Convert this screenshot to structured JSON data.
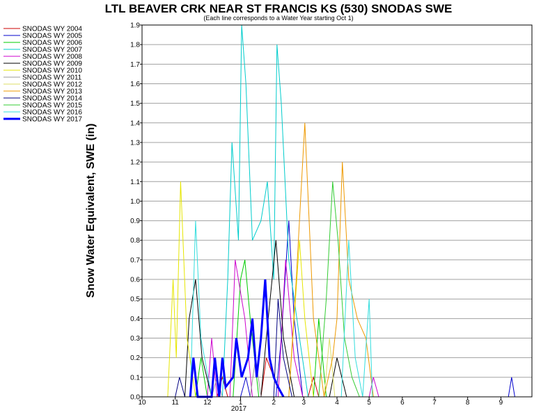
{
  "chart_data": {
    "type": "line",
    "title": "LTL BEAVER CRK NEAR ST FRANCIS KS (530) SNODAS SWE",
    "subtitle": "(Each line corresponds to a Water Year starting Oct 1)",
    "xlabel": "",
    "ylabel": "Snow Water Equivalent, SWE (in)",
    "ylim": [
      0,
      1.9
    ],
    "yticks": [
      "0.0",
      "0.1",
      "0.2",
      "0.3",
      "0.4",
      "0.5",
      "0.6",
      "0.7",
      "0.8",
      "0.9",
      "1.0",
      "1.1",
      "1.2",
      "1.3",
      "1.4",
      "1.5",
      "1.6",
      "1.7",
      "1.8",
      "1.9"
    ],
    "xlim": [
      "2016-10-01",
      "2017-09-30"
    ],
    "xticks": [
      {
        "date": "2016-10-01",
        "label": "10"
      },
      {
        "date": "2016-11-01",
        "label": "11"
      },
      {
        "date": "2016-12-01",
        "label": "12"
      },
      {
        "date": "2017-01-01",
        "label": "1"
      },
      {
        "date": "2017-02-01",
        "label": "2"
      },
      {
        "date": "2017-03-01",
        "label": "3"
      },
      {
        "date": "2017-04-01",
        "label": "4"
      },
      {
        "date": "2017-05-01",
        "label": "5"
      },
      {
        "date": "2017-06-01",
        "label": "6"
      },
      {
        "date": "2017-07-01",
        "label": "7"
      },
      {
        "date": "2017-08-01",
        "label": "8"
      },
      {
        "date": "2017-09-01",
        "label": "9"
      }
    ],
    "year_label": "2017",
    "grid": true,
    "legend_position": "top-left",
    "series": [
      {
        "name": "SNODAS WY 2004",
        "color": "#cc0000",
        "points": [
          [
            "2016-12-10",
            0
          ],
          [
            "2016-12-15",
            0.1
          ],
          [
            "2016-12-20",
            0
          ],
          [
            "2017-01-20",
            0
          ],
          [
            "2017-01-25",
            0.2
          ],
          [
            "2017-02-01",
            0.1
          ],
          [
            "2017-02-10",
            0
          ],
          [
            "2017-03-05",
            0
          ],
          [
            "2017-03-10",
            0.1
          ],
          [
            "2017-03-15",
            0
          ]
        ]
      },
      {
        "name": "SNODAS WY 2005",
        "color": "#0000cc",
        "points": [
          [
            "2017-01-01",
            0
          ],
          [
            "2017-01-06",
            0.1
          ],
          [
            "2017-01-10",
            0
          ],
          [
            "2017-02-03",
            0
          ],
          [
            "2017-02-08",
            0.3
          ],
          [
            "2017-02-15",
            0.9
          ],
          [
            "2017-02-20",
            0.4
          ],
          [
            "2017-02-28",
            0
          ],
          [
            "2017-09-08",
            0
          ],
          [
            "2017-09-11",
            0.1
          ],
          [
            "2017-09-14",
            0
          ]
        ]
      },
      {
        "name": "SNODAS WY 2006",
        "color": "#00cc00",
        "points": [
          [
            "2016-11-20",
            0
          ],
          [
            "2016-11-25",
            0.2
          ],
          [
            "2016-12-01",
            0
          ],
          [
            "2016-12-25",
            0
          ],
          [
            "2017-01-01",
            0.6
          ],
          [
            "2017-01-05",
            0.7
          ],
          [
            "2017-01-10",
            0.4
          ],
          [
            "2017-01-18",
            0
          ],
          [
            "2017-03-10",
            0
          ],
          [
            "2017-03-15",
            0.4
          ],
          [
            "2017-03-22",
            0
          ]
        ]
      },
      {
        "name": "SNODAS WY 2007",
        "color": "#00cccc",
        "points": [
          [
            "2016-12-15",
            0
          ],
          [
            "2016-12-20",
            0.6
          ],
          [
            "2016-12-24",
            1.3
          ],
          [
            "2016-12-30",
            0.8
          ],
          [
            "2017-01-02",
            1.9
          ],
          [
            "2017-01-06",
            1.6
          ],
          [
            "2017-01-12",
            0.8
          ],
          [
            "2017-01-20",
            0.9
          ],
          [
            "2017-01-26",
            1.1
          ],
          [
            "2017-02-01",
            0.6
          ],
          [
            "2017-02-04",
            1.8
          ],
          [
            "2017-02-08",
            1.5
          ],
          [
            "2017-02-15",
            0.7
          ],
          [
            "2017-02-25",
            0.3
          ],
          [
            "2017-03-05",
            0
          ]
        ]
      },
      {
        "name": "SNODAS WY 2008",
        "color": "#cc00cc",
        "points": [
          [
            "2016-12-01",
            0
          ],
          [
            "2016-12-05",
            0.3
          ],
          [
            "2016-12-10",
            0
          ],
          [
            "2016-12-22",
            0
          ],
          [
            "2016-12-27",
            0.7
          ],
          [
            "2017-01-05",
            0.4
          ],
          [
            "2017-01-12",
            0
          ],
          [
            "2017-02-05",
            0
          ],
          [
            "2017-02-12",
            0.7
          ],
          [
            "2017-02-20",
            0.2
          ],
          [
            "2017-02-28",
            0
          ],
          [
            "2017-05-01",
            0
          ],
          [
            "2017-05-05",
            0.1
          ],
          [
            "2017-05-10",
            0
          ]
        ]
      },
      {
        "name": "SNODAS WY 2009",
        "color": "#000000",
        "points": [
          [
            "2016-11-10",
            0
          ],
          [
            "2016-11-14",
            0.4
          ],
          [
            "2016-11-20",
            0.6
          ],
          [
            "2016-11-26",
            0.2
          ],
          [
            "2016-12-05",
            0
          ],
          [
            "2017-01-20",
            0
          ],
          [
            "2017-01-25",
            0.3
          ],
          [
            "2017-02-03",
            0.8
          ],
          [
            "2017-02-10",
            0.3
          ],
          [
            "2017-02-20",
            0
          ],
          [
            "2017-03-25",
            0
          ],
          [
            "2017-04-01",
            0.2
          ],
          [
            "2017-04-10",
            0
          ]
        ]
      },
      {
        "name": "SNODAS WY 2010",
        "color": "#e6e600",
        "points": [
          [
            "2016-10-25",
            0
          ],
          [
            "2016-10-30",
            0.6
          ],
          [
            "2016-11-02",
            0.2
          ],
          [
            "2016-11-06",
            1.1
          ],
          [
            "2016-11-12",
            0.3
          ],
          [
            "2016-11-20",
            0
          ],
          [
            "2017-02-15",
            0
          ],
          [
            "2017-02-25",
            0.8
          ],
          [
            "2017-03-02",
            0.4
          ],
          [
            "2017-03-10",
            0
          ]
        ]
      },
      {
        "name": "SNODAS WY 2011",
        "color": "#999999",
        "points": [
          [
            "2016-12-05",
            0
          ],
          [
            "2016-12-10",
            0.1
          ],
          [
            "2016-12-15",
            0
          ],
          [
            "2017-01-10",
            0
          ],
          [
            "2017-01-15",
            0.2
          ],
          [
            "2017-01-20",
            0
          ]
        ]
      },
      {
        "name": "SNODAS WY 2012",
        "color": "#dddd66",
        "points": [
          [
            "2017-03-20",
            0
          ],
          [
            "2017-03-25",
            0.3
          ],
          [
            "2017-03-30",
            0
          ]
        ]
      },
      {
        "name": "SNODAS WY 2013",
        "color": "#ee9900",
        "points": [
          [
            "2017-02-15",
            0
          ],
          [
            "2017-02-22",
            0.6
          ],
          [
            "2017-03-02",
            1.4
          ],
          [
            "2017-03-10",
            0.4
          ],
          [
            "2017-03-20",
            0
          ],
          [
            "2017-03-28",
            0.2
          ],
          [
            "2017-04-01",
            0.4
          ],
          [
            "2017-04-06",
            1.2
          ],
          [
            "2017-04-12",
            0.6
          ],
          [
            "2017-04-20",
            0.4
          ],
          [
            "2017-04-28",
            0.3
          ],
          [
            "2017-05-05",
            0
          ]
        ]
      },
      {
        "name": "SNODAS WY 2014",
        "color": "#000080",
        "points": [
          [
            "2016-11-01",
            0
          ],
          [
            "2016-11-05",
            0.1
          ],
          [
            "2016-11-10",
            0
          ],
          [
            "2017-02-01",
            0
          ],
          [
            "2017-02-05",
            0.5
          ],
          [
            "2017-02-10",
            0.2
          ],
          [
            "2017-02-18",
            0
          ]
        ]
      },
      {
        "name": "SNODAS WY 2015",
        "color": "#33cc33",
        "points": [
          [
            "2017-03-15",
            0
          ],
          [
            "2017-03-22",
            0.5
          ],
          [
            "2017-03-28",
            1.1
          ],
          [
            "2017-04-02",
            0.8
          ],
          [
            "2017-04-08",
            0.3
          ],
          [
            "2017-04-15",
            0.1
          ],
          [
            "2017-04-22",
            0
          ]
        ]
      },
      {
        "name": "SNODAS WY 2016",
        "color": "#33dddd",
        "points": [
          [
            "2016-11-15",
            0
          ],
          [
            "2016-11-20",
            0.9
          ],
          [
            "2016-11-25",
            0.3
          ],
          [
            "2016-12-05",
            0
          ],
          [
            "2017-04-05",
            0
          ],
          [
            "2017-04-12",
            0.8
          ],
          [
            "2017-04-18",
            0.2
          ],
          [
            "2017-04-25",
            0
          ],
          [
            "2017-05-01",
            0.5
          ],
          [
            "2017-05-04",
            0
          ]
        ]
      },
      {
        "name": "SNODAS WY 2017",
        "color": "#0000ff",
        "bold": true,
        "points": [
          [
            "2016-11-15",
            0
          ],
          [
            "2016-11-18",
            0.2
          ],
          [
            "2016-11-22",
            0
          ],
          [
            "2016-12-05",
            0
          ],
          [
            "2016-12-08",
            0.2
          ],
          [
            "2016-12-12",
            0
          ],
          [
            "2016-12-15",
            0.2
          ],
          [
            "2016-12-18",
            0.05
          ],
          [
            "2016-12-25",
            0.1
          ],
          [
            "2016-12-28",
            0.3
          ],
          [
            "2017-01-02",
            0.1
          ],
          [
            "2017-01-08",
            0.2
          ],
          [
            "2017-01-12",
            0.4
          ],
          [
            "2017-01-16",
            0.1
          ],
          [
            "2017-01-20",
            0.3
          ],
          [
            "2017-01-24",
            0.6
          ],
          [
            "2017-01-28",
            0.2
          ],
          [
            "2017-02-01",
            0.1
          ],
          [
            "2017-02-05",
            0.05
          ],
          [
            "2017-02-10",
            0
          ]
        ]
      }
    ]
  }
}
